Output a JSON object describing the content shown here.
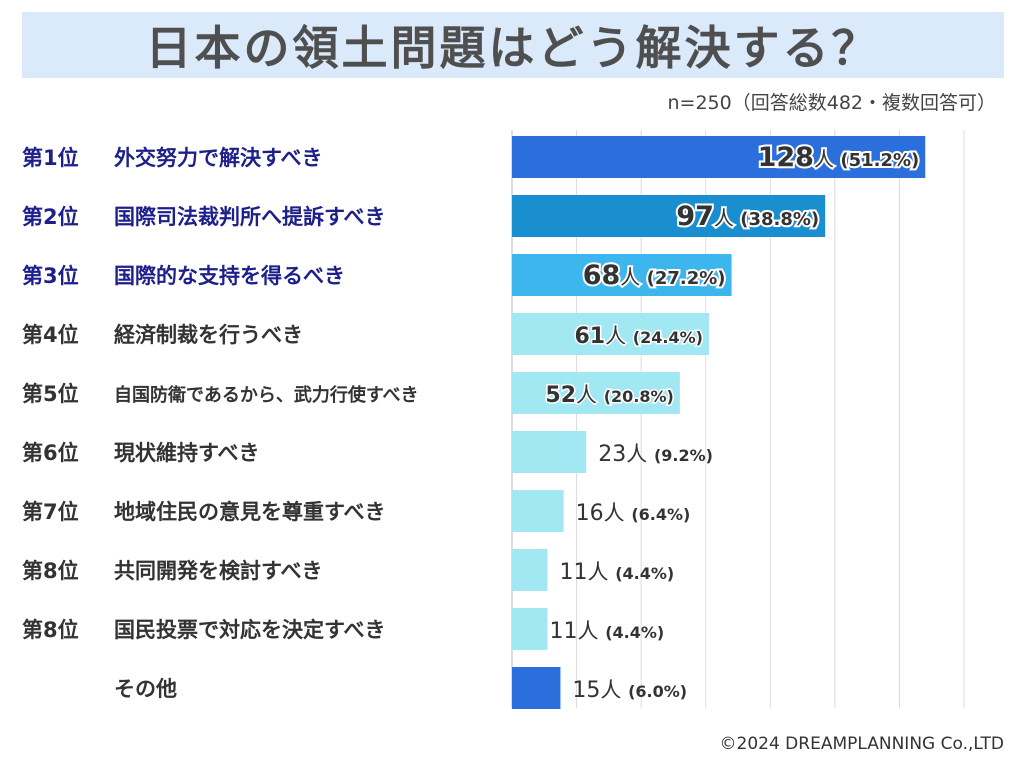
{
  "header": {
    "title": "日本の領土問題はどう解決する？",
    "subtitle": "n=250（回答総数482・複数回答可）"
  },
  "footer": {
    "copyright": "©2024 DREAMPLANNING Co.,LTD"
  },
  "chart_data": {
    "type": "bar",
    "orientation": "horizontal",
    "title": "日本の領土問題はどう解決する？",
    "xlim": [
      0,
      140
    ],
    "unit": "人",
    "categories": [
      {
        "rank": "第1位",
        "label": "外交努力で解決すべき",
        "value": 128,
        "percent": "(51.2%)",
        "color": "#2a6fdb",
        "label_color": "#1d1f8a"
      },
      {
        "rank": "第2位",
        "label": "国際司法裁判所へ提訴すべき",
        "value": 97,
        "percent": "(38.8%)",
        "color": "#1a8fd0",
        "label_color": "#1d1f8a"
      },
      {
        "rank": "第3位",
        "label": "国際的な支持を得るべき",
        "value": 68,
        "percent": "(27.2%)",
        "color": "#3cb6ec",
        "label_color": "#1d1f8a"
      },
      {
        "rank": "第4位",
        "label": "経済制裁を行うべき",
        "value": 61,
        "percent": "(24.4%)",
        "color": "#a2e8f3",
        "label_color": "#333333"
      },
      {
        "rank": "第5位",
        "label": "自国防衛であるから、武力行使すべき",
        "value": 52,
        "percent": "(20.8%)",
        "color": "#a2e8f3",
        "label_color": "#333333"
      },
      {
        "rank": "第6位",
        "label": "現状維持すべき",
        "value": 23,
        "percent": "(9.2%)",
        "color": "#a2e8f3",
        "label_color": "#333333"
      },
      {
        "rank": "第7位",
        "label": "地域住民の意見を尊重すべき",
        "value": 16,
        "percent": "(6.4%)",
        "color": "#a2e8f3",
        "label_color": "#333333"
      },
      {
        "rank": "第8位",
        "label": "共同開発を検討すべき",
        "value": 11,
        "percent": "(4.4%)",
        "color": "#a2e8f3",
        "label_color": "#333333"
      },
      {
        "rank": "第8位",
        "label": "国民投票で対応を決定すべき",
        "value": 11,
        "percent": "(4.4%)",
        "color": "#a2e8f3",
        "label_color": "#333333"
      },
      {
        "rank": "",
        "label": "その他",
        "value": 15,
        "percent": "(6.0%)",
        "color": "#2a6fdb",
        "label_color": "#333333"
      }
    ]
  }
}
